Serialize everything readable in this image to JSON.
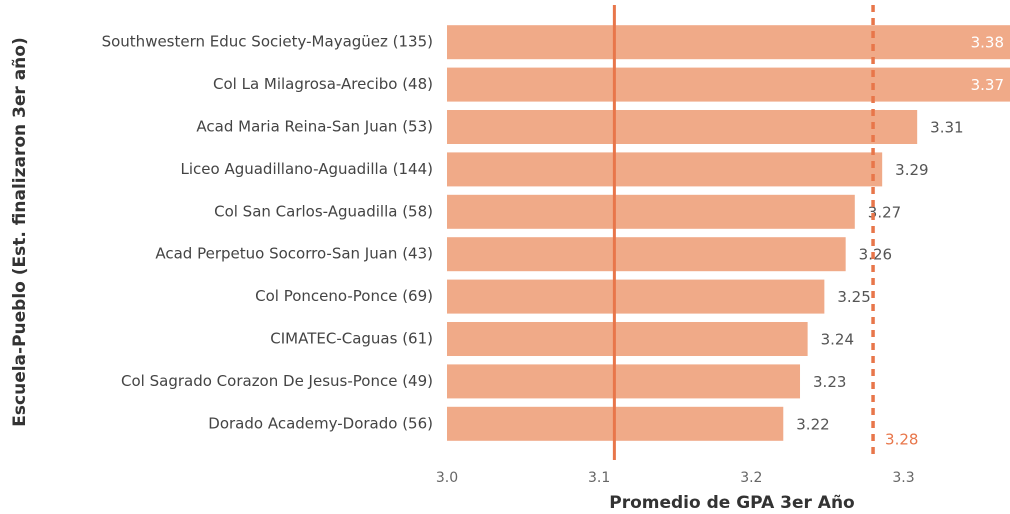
{
  "chart_data": {
    "type": "bar",
    "orientation": "horizontal",
    "x_label": "Promedio de GPA 3er Año",
    "y_label": "Escuela-Pueblo (Est. finalizaron 3er año)",
    "categories": [
      "Southwestern Educ Society-Mayagüez (135)",
      "Col La Milagrosa-Arecibo (48)",
      "Acad Maria Reina-San Juan (53)",
      "Liceo Aguadillano-Aguadilla (144)",
      "Col San Carlos-Aguadilla (58)",
      "Acad Perpetuo Socorro-San Juan (43)",
      "Col Ponceno-Ponce (69)",
      "CIMATEC-Caguas (61)",
      "Col Sagrado Corazon De Jesus-Ponce (49)",
      "Dorado Academy-Dorado (56)"
    ],
    "values": [
      3.38,
      3.37,
      3.309,
      3.286,
      3.268,
      3.262,
      3.248,
      3.237,
      3.232,
      3.221
    ],
    "value_labels": [
      "3.38",
      "3.37",
      "3.31",
      "3.29",
      "3.27",
      "3.26",
      "3.25",
      "3.24",
      "3.23",
      "3.22"
    ],
    "color": "#f0aa88",
    "xlim": [
      3.0,
      3.37
    ],
    "xticks": [
      {
        "value": 3.0,
        "label": "3.0"
      },
      3.1,
      3.2,
      3.3
    ],
    "mean_line": 3.11,
    "target_line": 3.28,
    "line_color": "#e8764a"
  }
}
